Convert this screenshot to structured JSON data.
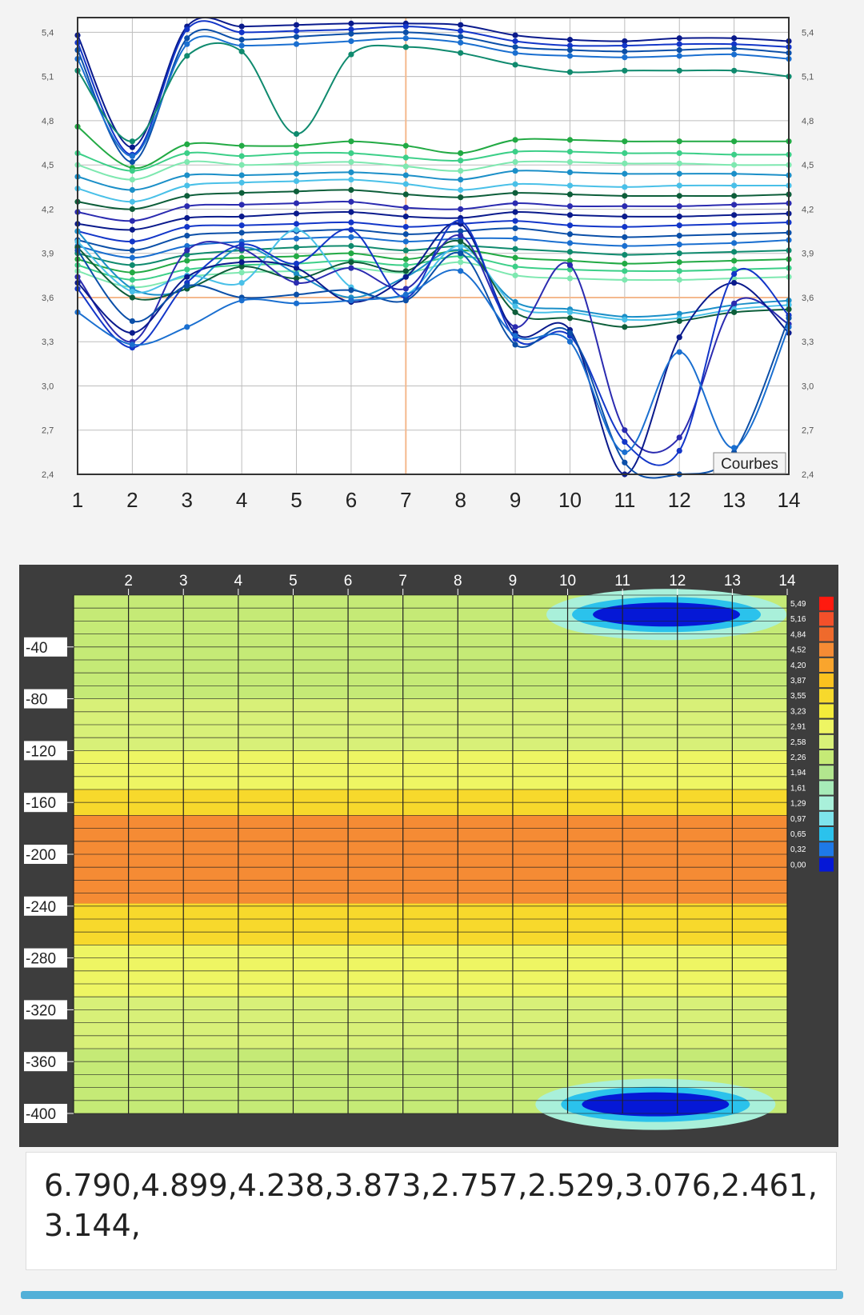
{
  "line_chart": {
    "type": "line",
    "x": [
      1,
      2,
      3,
      4,
      5,
      6,
      7,
      8,
      9,
      10,
      11,
      12,
      13,
      14
    ],
    "xlim": [
      1,
      14
    ],
    "ylim": [
      2.4,
      5.5
    ],
    "yticks": [
      "5,4",
      "5,1",
      "4,8",
      "4,5",
      "4,2",
      "3,9",
      "3,6",
      "3,3",
      "3,0",
      "2,7",
      "2,4"
    ],
    "ytick_values": [
      5.4,
      5.1,
      4.8,
      4.5,
      4.2,
      3.9,
      3.6,
      3.3,
      3.0,
      2.7,
      2.4
    ],
    "xticks": [
      "1",
      "2",
      "3",
      "4",
      "5",
      "6",
      "7",
      "8",
      "9",
      "10",
      "11",
      "12",
      "13",
      "14"
    ],
    "legend_label": "Courbes",
    "grid": true,
    "highlight": {
      "x": 7,
      "y": 3.6,
      "color": "#f4b98e"
    },
    "colors": [
      "#0a1a8c",
      "#1336c8",
      "#0b4fa8",
      "#1a6fd0",
      "#0f8a6e",
      "#22aa44",
      "#3ccf88",
      "#7ee8b0",
      "#1b8fc8",
      "#49c0e8",
      "#0d5e3a",
      "#2b2bb0"
    ],
    "series": [
      {
        "values": [
          5.38,
          4.62,
          5.44,
          5.44,
          5.45,
          5.46,
          5.46,
          5.45,
          5.38,
          5.35,
          5.34,
          5.36,
          5.36,
          5.34
        ]
      },
      {
        "values": [
          5.33,
          4.57,
          5.42,
          5.4,
          5.41,
          5.42,
          5.44,
          5.41,
          5.34,
          5.31,
          5.31,
          5.32,
          5.32,
          5.3
        ]
      },
      {
        "values": [
          5.28,
          4.52,
          5.36,
          5.35,
          5.37,
          5.39,
          5.4,
          5.37,
          5.3,
          5.28,
          5.27,
          5.28,
          5.29,
          5.26
        ]
      },
      {
        "values": [
          5.22,
          4.56,
          5.32,
          5.31,
          5.32,
          5.34,
          5.36,
          5.33,
          5.26,
          5.24,
          5.23,
          5.24,
          5.25,
          5.22
        ]
      },
      {
        "values": [
          5.14,
          4.66,
          5.24,
          5.27,
          4.71,
          5.25,
          5.3,
          5.26,
          5.18,
          5.13,
          5.14,
          5.14,
          5.14,
          5.1
        ]
      },
      {
        "values": [
          4.76,
          4.48,
          4.64,
          4.63,
          4.63,
          4.66,
          4.63,
          4.58,
          4.67,
          4.67,
          4.66,
          4.66,
          4.66,
          4.66
        ]
      },
      {
        "values": [
          4.58,
          4.46,
          4.58,
          4.56,
          4.58,
          4.58,
          4.55,
          4.53,
          4.59,
          4.59,
          4.58,
          4.58,
          4.57,
          4.57
        ]
      },
      {
        "values": [
          4.5,
          4.4,
          4.52,
          4.5,
          4.51,
          4.52,
          4.49,
          4.46,
          4.52,
          4.52,
          4.51,
          4.51,
          4.5,
          4.5
        ]
      },
      {
        "values": [
          4.42,
          4.33,
          4.43,
          4.43,
          4.44,
          4.45,
          4.43,
          4.4,
          4.46,
          4.45,
          4.44,
          4.44,
          4.44,
          4.43
        ]
      },
      {
        "values": [
          4.34,
          4.25,
          4.36,
          4.38,
          4.39,
          4.4,
          4.37,
          4.33,
          4.37,
          4.36,
          4.35,
          4.36,
          4.36,
          4.36
        ]
      },
      {
        "values": [
          4.25,
          4.2,
          4.29,
          4.31,
          4.32,
          4.33,
          4.3,
          4.28,
          4.31,
          4.3,
          4.29,
          4.29,
          4.29,
          4.3
        ]
      },
      {
        "values": [
          4.18,
          4.12,
          4.22,
          4.23,
          4.24,
          4.25,
          4.21,
          4.2,
          4.24,
          4.22,
          4.22,
          4.22,
          4.23,
          4.24
        ]
      },
      {
        "values": [
          4.1,
          4.06,
          4.14,
          4.15,
          4.17,
          4.18,
          4.15,
          4.14,
          4.18,
          4.16,
          4.15,
          4.15,
          4.16,
          4.17
        ]
      },
      {
        "values": [
          4.05,
          3.98,
          4.08,
          4.09,
          4.1,
          4.11,
          4.08,
          4.1,
          4.12,
          4.09,
          4.08,
          4.09,
          4.1,
          4.11
        ]
      },
      {
        "values": [
          3.99,
          3.92,
          4.02,
          4.04,
          4.05,
          4.06,
          4.03,
          4.05,
          4.07,
          4.03,
          4.01,
          4.02,
          4.03,
          4.04
        ]
      },
      {
        "values": [
          3.95,
          3.87,
          3.95,
          3.98,
          4.0,
          4.01,
          3.98,
          4.0,
          4.0,
          3.97,
          3.95,
          3.96,
          3.97,
          3.99
        ]
      },
      {
        "values": [
          3.9,
          3.82,
          3.89,
          3.92,
          3.94,
          3.95,
          3.92,
          3.95,
          3.93,
          3.91,
          3.89,
          3.9,
          3.91,
          3.92
        ]
      },
      {
        "values": [
          3.86,
          3.77,
          3.85,
          3.87,
          3.88,
          3.9,
          3.86,
          3.92,
          3.87,
          3.85,
          3.83,
          3.84,
          3.85,
          3.86
        ]
      },
      {
        "values": [
          3.82,
          3.72,
          3.79,
          3.82,
          3.83,
          3.85,
          3.82,
          3.88,
          3.81,
          3.79,
          3.78,
          3.78,
          3.79,
          3.8
        ]
      },
      {
        "values": [
          3.78,
          3.67,
          3.74,
          3.77,
          3.78,
          3.8,
          3.77,
          3.84,
          3.75,
          3.73,
          3.72,
          3.72,
          3.73,
          3.74
        ]
      },
      {
        "values": [
          4.05,
          3.66,
          3.66,
          3.94,
          3.76,
          3.6,
          3.74,
          3.92,
          3.57,
          3.52,
          3.47,
          3.49,
          3.55,
          3.58
        ]
      },
      {
        "values": [
          3.98,
          3.64,
          3.75,
          3.7,
          4.06,
          3.67,
          3.62,
          3.95,
          3.54,
          3.5,
          3.45,
          3.46,
          3.52,
          3.55
        ]
      },
      {
        "values": [
          3.94,
          3.6,
          3.66,
          3.81,
          3.73,
          3.84,
          3.78,
          3.98,
          3.5,
          3.46,
          3.4,
          3.44,
          3.5,
          3.52
        ]
      },
      {
        "values": [
          3.74,
          3.3,
          3.92,
          3.93,
          3.7,
          3.8,
          3.66,
          4.02,
          3.4,
          3.82,
          2.7,
          2.65,
          3.56,
          3.42
        ]
      },
      {
        "values": [
          3.7,
          3.36,
          3.74,
          3.84,
          3.8,
          3.57,
          3.74,
          4.1,
          3.36,
          3.38,
          2.4,
          3.33,
          3.7,
          3.36
        ]
      },
      {
        "values": [
          3.66,
          3.26,
          3.7,
          3.96,
          3.83,
          4.06,
          3.6,
          4.12,
          3.32,
          3.34,
          2.62,
          2.56,
          3.76,
          3.48
        ]
      },
      {
        "values": [
          3.92,
          3.44,
          3.68,
          3.6,
          3.62,
          3.65,
          3.58,
          3.9,
          3.28,
          3.36,
          2.48,
          2.4,
          2.55,
          3.46
        ]
      },
      {
        "values": [
          3.5,
          3.28,
          3.4,
          3.58,
          3.56,
          3.58,
          3.62,
          3.78,
          3.34,
          3.3,
          2.55,
          3.23,
          2.58,
          3.4
        ]
      }
    ]
  },
  "heatmap": {
    "type": "heatmap",
    "xticks": [
      "2",
      "3",
      "4",
      "5",
      "6",
      "7",
      "8",
      "9",
      "10",
      "11",
      "12",
      "13",
      "14"
    ],
    "ytick_labels": [
      "-40",
      "-80",
      "-120",
      "-160",
      "-200",
      "-240",
      "-280",
      "-320",
      "-360",
      "-400"
    ],
    "ytick_values": [
      -40,
      -80,
      -120,
      -160,
      -200,
      -240,
      -280,
      -320,
      -360,
      -400
    ],
    "x_range": [
      1,
      14
    ],
    "y_range": [
      0,
      -400
    ],
    "legend_labels": [
      "5,49",
      "5,16",
      "4,84",
      "4,52",
      "4,20",
      "3,87",
      "3,55",
      "3,23",
      "2,91",
      "2,58",
      "2,26",
      "1,94",
      "1,61",
      "1,29",
      "0,97",
      "0,65",
      "0,32",
      "0,00"
    ],
    "legend_colors": [
      "#ff1a0f",
      "#f4502a",
      "#ef6a2c",
      "#f58b34",
      "#f9a52d",
      "#fbc21f",
      "#f7d92c",
      "#f4ec3a",
      "#eef563",
      "#d8f078",
      "#c5ea76",
      "#b2e68e",
      "#a7ebb8",
      "#a9f0da",
      "#7ee4ec",
      "#2bc2ec",
      "#1e79e8",
      "#0518d6"
    ],
    "bands": [
      {
        "from": 0,
        "to": -40,
        "value": 2.1
      },
      {
        "from": -40,
        "to": -80,
        "value": 2.3
      },
      {
        "from": -80,
        "to": -120,
        "value": 2.6
      },
      {
        "from": -120,
        "to": -150,
        "value": 3.0
      },
      {
        "from": -150,
        "to": -170,
        "value": 3.5
      },
      {
        "from": -170,
        "to": -238,
        "value": 4.55
      },
      {
        "from": -238,
        "to": -270,
        "value": 3.6
      },
      {
        "from": -270,
        "to": -310,
        "value": 3.0
      },
      {
        "from": -310,
        "to": -350,
        "value": 2.5
      },
      {
        "from": -350,
        "to": -400,
        "value": 2.2
      }
    ],
    "anomalies": [
      {
        "x": 11.8,
        "y": -15,
        "value": 0.0
      },
      {
        "x": 11.6,
        "y": -393,
        "value": 0.0
      }
    ]
  },
  "output_text": "6.790,4.899,4.238,3.873,2.757,2.529,3.076,2.461,3.144,"
}
